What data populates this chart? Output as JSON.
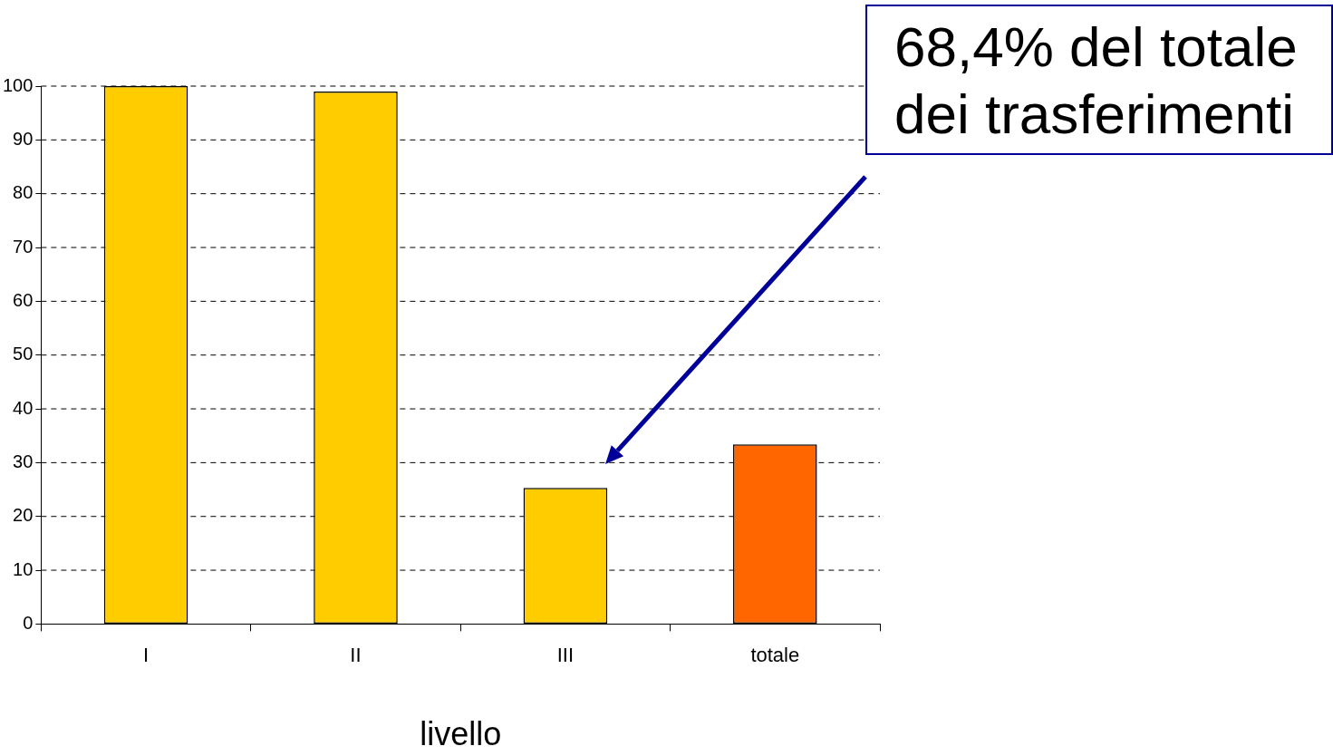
{
  "chart_data": {
    "type": "bar",
    "xlabel": "livello",
    "categories": [
      "I",
      "II",
      "III",
      "totale"
    ],
    "values": [
      100,
      99,
      25.3,
      33.4
    ],
    "colors": [
      "#ffcc00",
      "#ffcc00",
      "#ffcc00",
      "#ff6600"
    ],
    "ylim": [
      0,
      100
    ],
    "yticks": [
      0,
      10,
      20,
      30,
      40,
      50,
      60,
      70,
      80,
      90,
      100
    ],
    "grid": "y",
    "annotations": [
      "68,4% del totale\ndei trasferimenti"
    ]
  }
}
